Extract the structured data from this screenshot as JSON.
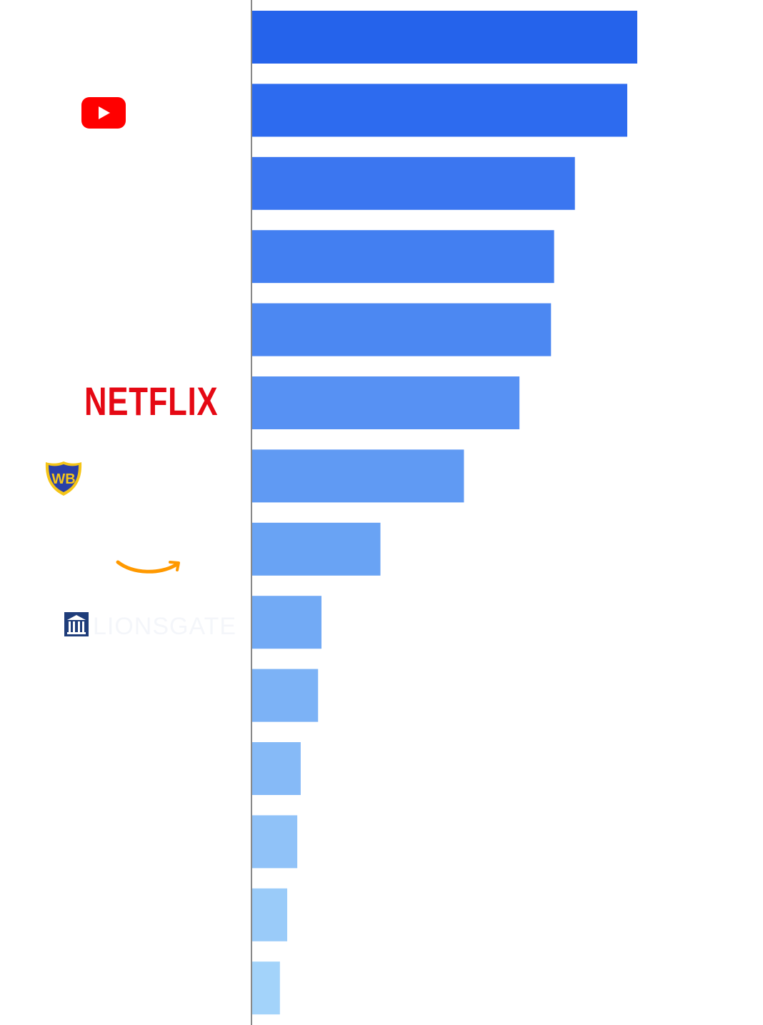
{
  "chart_data": {
    "type": "bar",
    "orientation": "horizontal",
    "categories": [
      "",
      "YouTube",
      "",
      "",
      "",
      "Netflix",
      "Warner Bros.",
      "Amazon",
      "Lionsgate",
      "",
      "",
      "",
      "",
      ""
    ],
    "values": [
      100,
      97.4,
      83.8,
      78.4,
      77.6,
      69.4,
      55.0,
      33.3,
      18.0,
      17.1,
      12.6,
      11.7,
      9.1,
      7.2
    ],
    "xlim": [
      0,
      100
    ],
    "title": "",
    "xlabel": "",
    "ylabel": "",
    "grid": false,
    "legend": "none",
    "colors": [
      "#2563eb",
      "#2d6bef",
      "#3b76f0",
      "#437ff1",
      "#4c88f2",
      "#5791f3",
      "#609af3",
      "#69a3f4",
      "#72aaf5",
      "#7cb2f6",
      "#86baf7",
      "#90c2f8",
      "#9acbf9",
      "#a3d3fa"
    ]
  },
  "logos": {
    "youtube": "youtube-logo",
    "netflix": "NETFLIX",
    "warner": "WB",
    "amazon": "amazon-smile-logo",
    "lionsgate": "LIONSGATE"
  },
  "colors": {
    "axis": "#888888",
    "youtube_red": "#ff0000",
    "netflix_red": "#e50914",
    "wb_blue": "#1e3a8a",
    "wb_gold": "#f5c518",
    "amazon_orange": "#ff9900",
    "lionsgate_blue": "#1f3d7a"
  }
}
